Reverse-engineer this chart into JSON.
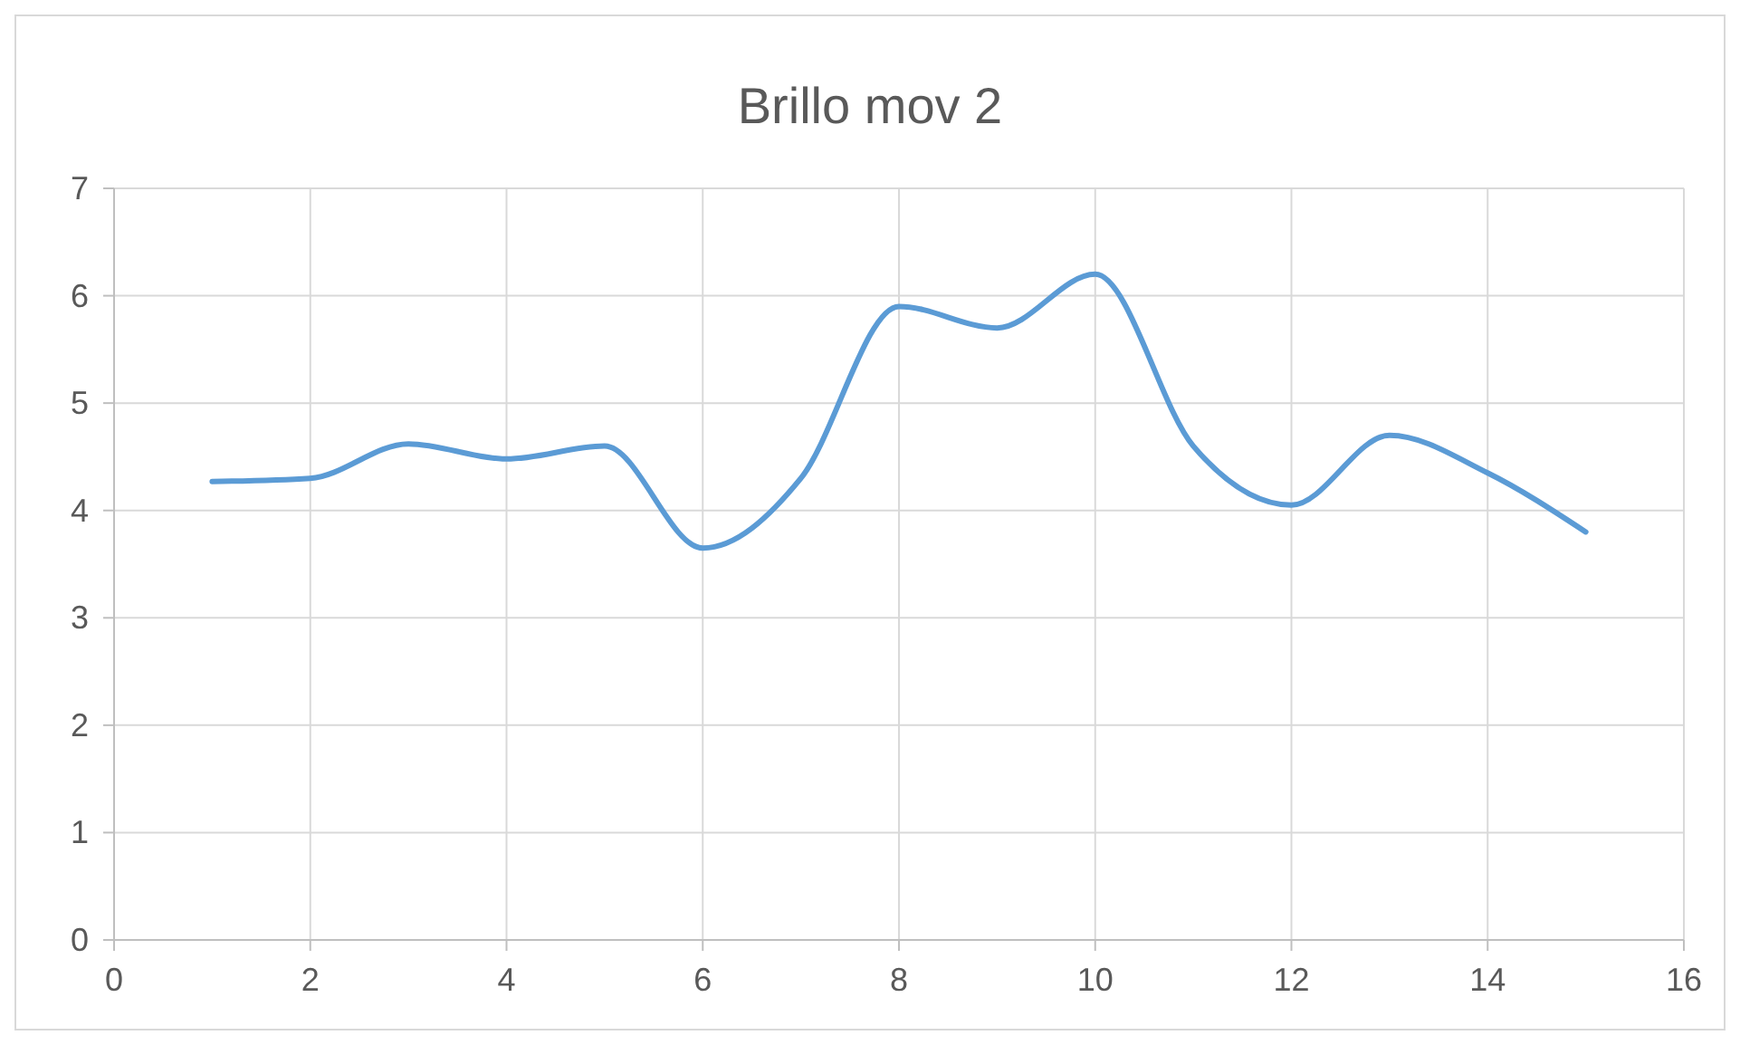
{
  "chart_data": {
    "type": "line",
    "title": "Brillo mov 2",
    "x": [
      1,
      2,
      3,
      4,
      5,
      6,
      7,
      8,
      9,
      10,
      11,
      12,
      13,
      14,
      15
    ],
    "series": [
      {
        "color": "#5b9bd5",
        "values": [
          4.27,
          4.3,
          4.62,
          4.48,
          4.6,
          3.65,
          4.3,
          5.9,
          5.7,
          6.2,
          4.6,
          4.05,
          4.7,
          4.35,
          3.8
        ]
      }
    ],
    "xlim": [
      0,
      16
    ],
    "xticks": [
      0,
      2,
      4,
      6,
      8,
      10,
      12,
      14,
      16
    ],
    "ylim": [
      0,
      7
    ],
    "yticks": [
      0,
      1,
      2,
      3,
      4,
      5,
      6,
      7
    ],
    "grid": true,
    "marker": "none",
    "line_style": "solid"
  }
}
